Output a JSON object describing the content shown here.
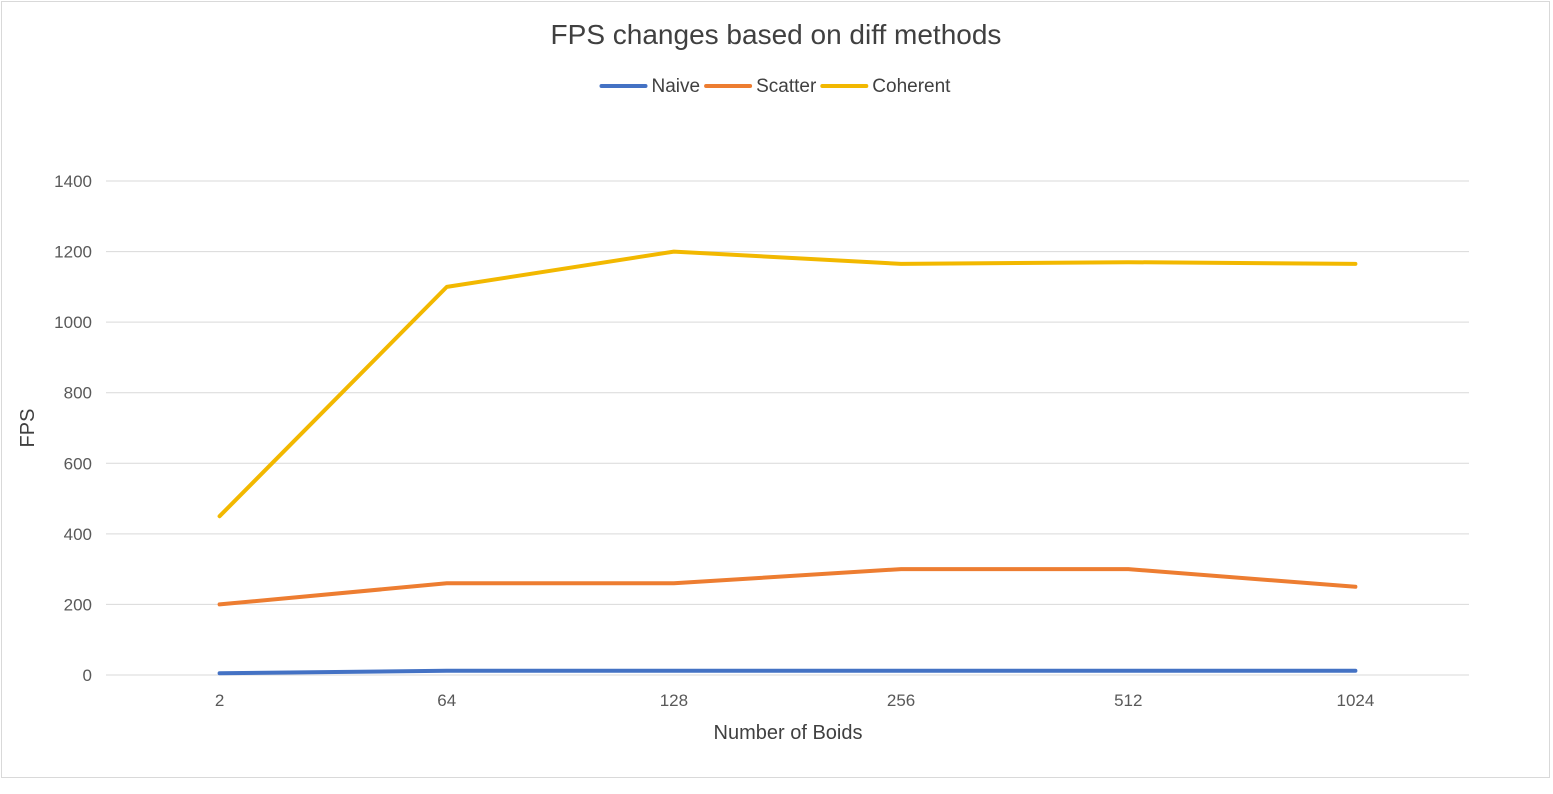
{
  "chart_data": {
    "type": "line",
    "title": "FPS changes based on diff methods",
    "xlabel": "Number of Boids",
    "ylabel": "FPS",
    "categories": [
      "2",
      "64",
      "128",
      "256",
      "512",
      "1024"
    ],
    "ylim": [
      0,
      1400
    ],
    "yticks": [
      0,
      200,
      400,
      600,
      800,
      1000,
      1200,
      1400
    ],
    "grid": true,
    "legend_position": "top",
    "series": [
      {
        "name": "Naive",
        "color": "#4472C4",
        "values": [
          5,
          12,
          12,
          12,
          12,
          12
        ]
      },
      {
        "name": "Scatter",
        "color": "#ED7D31",
        "values": [
          200,
          260,
          260,
          300,
          300,
          250
        ]
      },
      {
        "name": "Coherent",
        "color": "#F2B800",
        "values": [
          450,
          1100,
          1200,
          1165,
          1170,
          1165
        ]
      }
    ]
  }
}
